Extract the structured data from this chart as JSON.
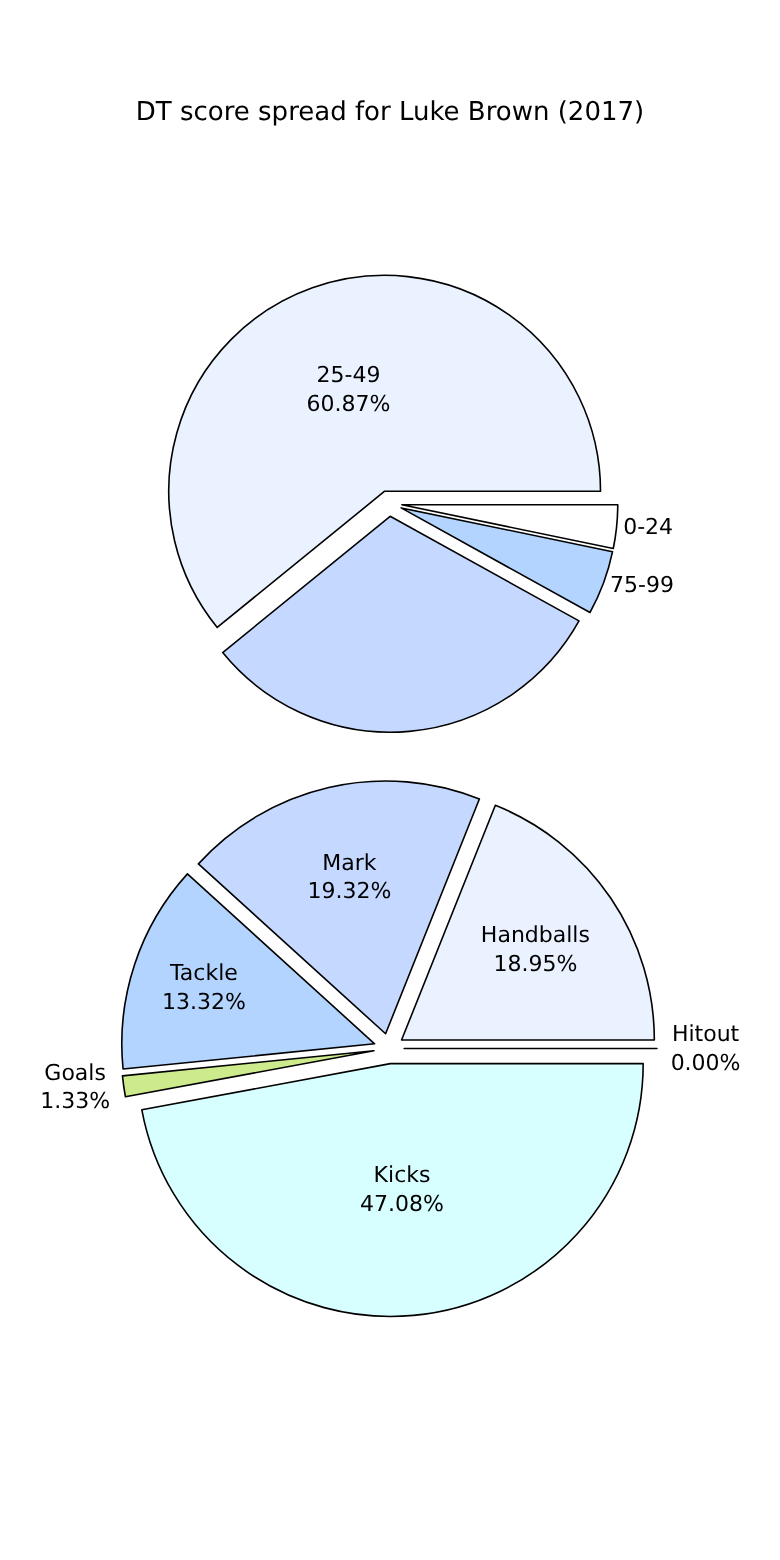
{
  "chart_data": [
    {
      "type": "pie",
      "title": "DT score spread for Luke Brown (2017)",
      "categories": [
        "0-24",
        "25-49",
        null,
        "75-99"
      ],
      "values": [
        3.25,
        60.87,
        31.08,
        4.8
      ],
      "colors": [
        "#ffffff",
        "#eaf1ff",
        "#c5d8ff",
        "#b3d4ff"
      ],
      "value_labels": [
        null,
        "60.87%",
        null,
        null
      ]
    },
    {
      "type": "pie",
      "categories": [
        "Hitout",
        "Handballs",
        "Mark",
        "Tackle",
        "Goals",
        "Kicks"
      ],
      "values": [
        0.0,
        18.95,
        19.32,
        13.32,
        1.33,
        47.08
      ],
      "colors": [
        "#ffffff",
        "#eaf1ff",
        "#c5d8ff",
        "#b3d4ff",
        "#cdea8c",
        "#d8ffff"
      ],
      "value_labels": [
        "0.00%",
        "18.95%",
        "19.32%",
        "13.32%",
        "1.33%",
        "47.08%"
      ]
    }
  ]
}
